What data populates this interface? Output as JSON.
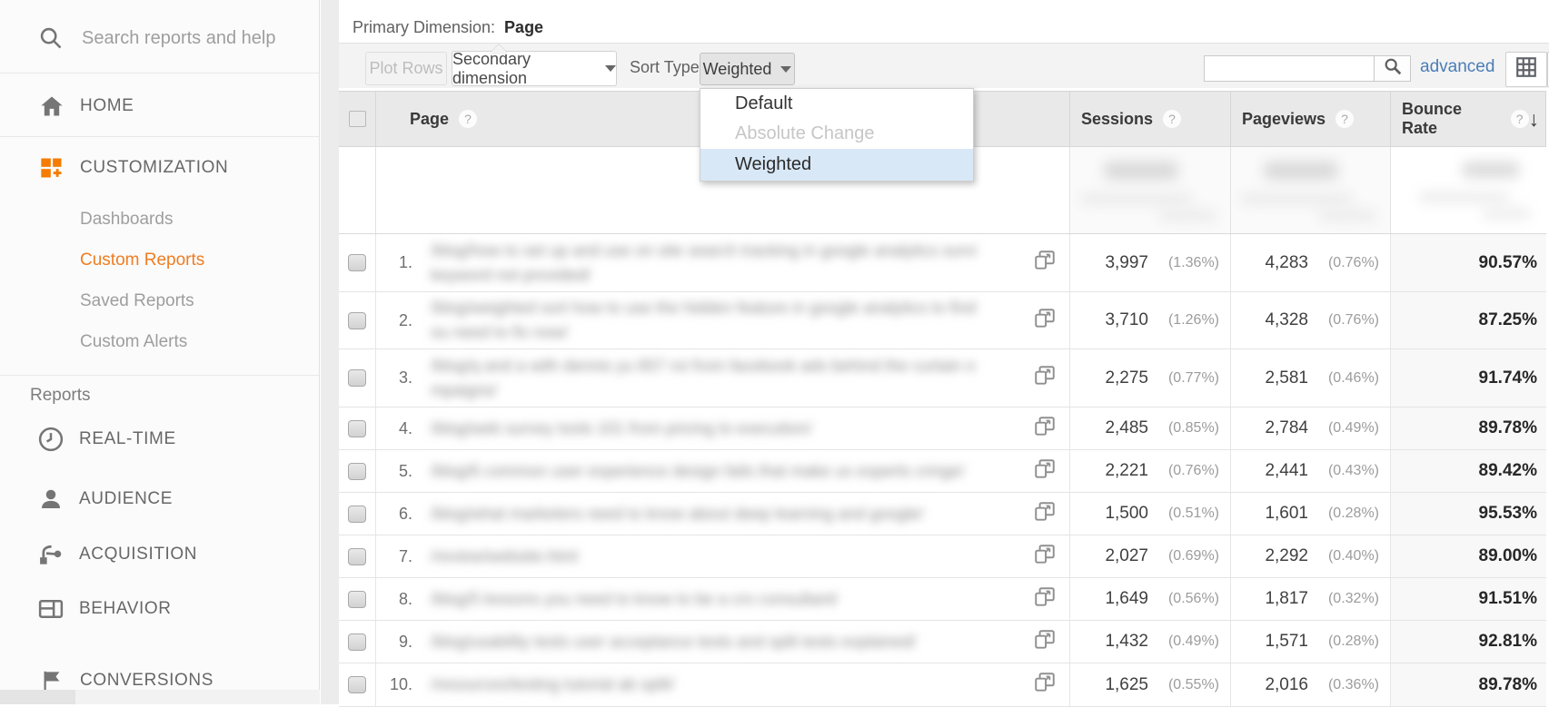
{
  "colors": {
    "accent_orange": "#ef7d22",
    "link_blue": "#4a7db6",
    "menu_highlight": "#d9e8f7"
  },
  "sidebar": {
    "search_placeholder": "Search reports and help",
    "home_label": "HOME",
    "customization": {
      "label": "CUSTOMIZATION",
      "items": [
        {
          "label": "Dashboards",
          "active": false
        },
        {
          "label": "Custom Reports",
          "active": true
        },
        {
          "label": "Saved Reports",
          "active": false
        },
        {
          "label": "Custom Alerts",
          "active": false
        }
      ]
    },
    "reports_heading": "Reports",
    "report_items": [
      {
        "label": "REAL-TIME",
        "icon": "clock-icon"
      },
      {
        "label": "AUDIENCE",
        "icon": "person-icon"
      },
      {
        "label": "ACQUISITION",
        "icon": "share-icon"
      },
      {
        "label": "BEHAVIOR",
        "icon": "window-icon"
      },
      {
        "label": "CONVERSIONS",
        "icon": "flag-icon"
      }
    ]
  },
  "topbar": {
    "primary_dimension_label": "Primary Dimension:",
    "primary_dimension_value": "Page"
  },
  "toolbar": {
    "plot_rows_label": "Plot Rows",
    "secondary_dimension_label": "Secondary dimension",
    "sort_type_label": "Sort Type:",
    "sort_value": "Weighted",
    "search_value": "",
    "advanced_label": "advanced"
  },
  "sort_menu": {
    "options": [
      {
        "label": "Default",
        "state": "normal"
      },
      {
        "label": "Absolute Change",
        "state": "disabled"
      },
      {
        "label": "Weighted",
        "state": "selected"
      }
    ]
  },
  "table": {
    "headers": {
      "page": "Page",
      "sessions": "Sessions",
      "pageviews": "Pageviews",
      "bounce_rate": "Bounce Rate"
    },
    "summary_note": "totals blurred in source",
    "rows": [
      {
        "n": "1.",
        "page": "/blog/how to set up and use on site search tracking in google analytics survival tip for",
        "page2": "keyword not provided/",
        "sessions": "3,997",
        "sessions_pct": "(1.36%)",
        "pageviews": "4,283",
        "pageviews_pct": "(0.76%)",
        "bounce": "90.57%"
      },
      {
        "n": "2.",
        "page": "/blog/weighted sort how to use the hidden feature in google analytics to find pages y",
        "page2": "ou need to fix now/",
        "sessions": "3,710",
        "sessions_pct": "(1.26%)",
        "pageviews": "4,328",
        "pageviews_pct": "(0.76%)",
        "bounce": "87.25%"
      },
      {
        "n": "3.",
        "page": "/blog/q and a with dennis yu 657 roi from facebook ads behind the curtain of top ca",
        "page2": "mpaigns/",
        "sessions": "2,275",
        "sessions_pct": "(0.77%)",
        "pageviews": "2,581",
        "pageviews_pct": "(0.46%)",
        "bounce": "91.74%"
      },
      {
        "n": "4.",
        "page": "/blog/web survey tools 101 from pricing to execution/",
        "page2": "",
        "sessions": "2,485",
        "sessions_pct": "(0.85%)",
        "pageviews": "2,784",
        "pageviews_pct": "(0.49%)",
        "bounce": "89.78%"
      },
      {
        "n": "5.",
        "page": "/blog/6 common user experience design fails that make ux experts cringe/",
        "page2": "",
        "sessions": "2,221",
        "sessions_pct": "(0.76%)",
        "pageviews": "2,441",
        "pageviews_pct": "(0.43%)",
        "bounce": "89.42%"
      },
      {
        "n": "6.",
        "page": "/blog/what marketers need to know about deep learning and google/",
        "page2": "",
        "sessions": "1,500",
        "sessions_pct": "(0.51%)",
        "pageviews": "1,601",
        "pageviews_pct": "(0.28%)",
        "bounce": "95.53%"
      },
      {
        "n": "7.",
        "page": "/review/website.html",
        "page2": "",
        "sessions": "2,027",
        "sessions_pct": "(0.69%)",
        "pageviews": "2,292",
        "pageviews_pct": "(0.40%)",
        "bounce": "89.00%"
      },
      {
        "n": "8.",
        "page": "/blog/5 lessons you need to know to be a cro consultant/",
        "page2": "",
        "sessions": "1,649",
        "sessions_pct": "(0.56%)",
        "pageviews": "1,817",
        "pageviews_pct": "(0.32%)",
        "bounce": "91.51%"
      },
      {
        "n": "9.",
        "page": "/blog/usability tests user acceptance tests and split tests explained/",
        "page2": "",
        "sessions": "1,432",
        "sessions_pct": "(0.49%)",
        "pageviews": "1,571",
        "pageviews_pct": "(0.28%)",
        "bounce": "92.81%"
      },
      {
        "n": "10.",
        "page": "/resources/testing tutorial ab split/",
        "page2": "",
        "sessions": "1,625",
        "sessions_pct": "(0.55%)",
        "pageviews": "2,016",
        "pageviews_pct": "(0.36%)",
        "bounce": "89.78%"
      }
    ]
  }
}
